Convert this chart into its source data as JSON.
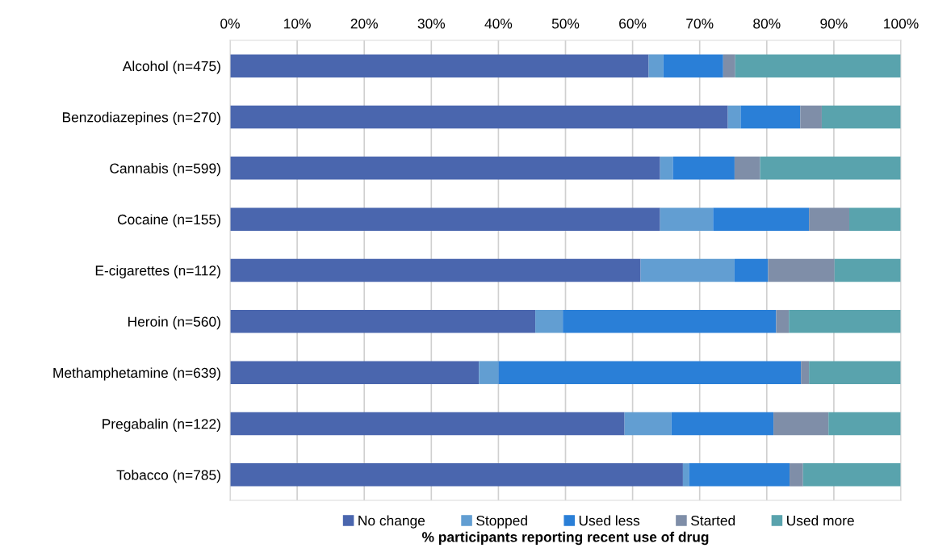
{
  "chart_data": {
    "type": "bar",
    "orientation": "horizontal",
    "stacked": true,
    "xlabel": "% participants reporting recent use of drug",
    "categories": [
      "Alcohol (n=475)",
      "Benzodiazepines (n=270)",
      "Cannabis (n=599)",
      "Cocaine (n=155)",
      "E-cigarettes (n=112)",
      "Heroin (n=560)",
      "Methamphetamine (n=639)",
      "Pregabalin (n=122)",
      "Tobacco (n=785)"
    ],
    "series": [
      {
        "name": "No change",
        "color": "#4a66ae",
        "values": [
          62.4,
          74.2,
          64.1,
          64.1,
          61.2,
          45.5,
          37.1,
          58.8,
          67.5
        ]
      },
      {
        "name": "Stopped",
        "color": "#629ed2",
        "values": [
          2.2,
          1.9,
          1.9,
          7.9,
          14.0,
          4.1,
          2.9,
          7.0,
          0.9
        ]
      },
      {
        "name": "Used less",
        "color": "#2a7fd7",
        "values": [
          8.9,
          8.9,
          9.2,
          14.3,
          5.0,
          31.8,
          45.1,
          15.2,
          15.0
        ]
      },
      {
        "name": "Started",
        "color": "#7f8ea8",
        "values": [
          1.8,
          3.2,
          3.8,
          6.0,
          9.9,
          1.9,
          1.2,
          8.2,
          2.0
        ]
      },
      {
        "name": "Used more",
        "color": "#59a3ad",
        "values": [
          24.7,
          11.8,
          21.0,
          7.7,
          9.9,
          16.7,
          13.7,
          10.8,
          14.6
        ]
      }
    ],
    "xlim": [
      0,
      100
    ],
    "xticks": [
      {
        "value": 0,
        "label": "0%"
      },
      {
        "value": 10,
        "label": "10%"
      },
      {
        "value": 20,
        "label": "20%"
      },
      {
        "value": 30,
        "label": "30%"
      },
      {
        "value": 40,
        "label": "40%"
      },
      {
        "value": 50,
        "label": "50%"
      },
      {
        "value": 60,
        "label": "60%"
      },
      {
        "value": 70,
        "label": "70%"
      },
      {
        "value": 80,
        "label": "80%"
      },
      {
        "value": 90,
        "label": "90%"
      },
      {
        "value": 100,
        "label": "100%"
      }
    ],
    "grid": "x",
    "legend": "bottom"
  }
}
